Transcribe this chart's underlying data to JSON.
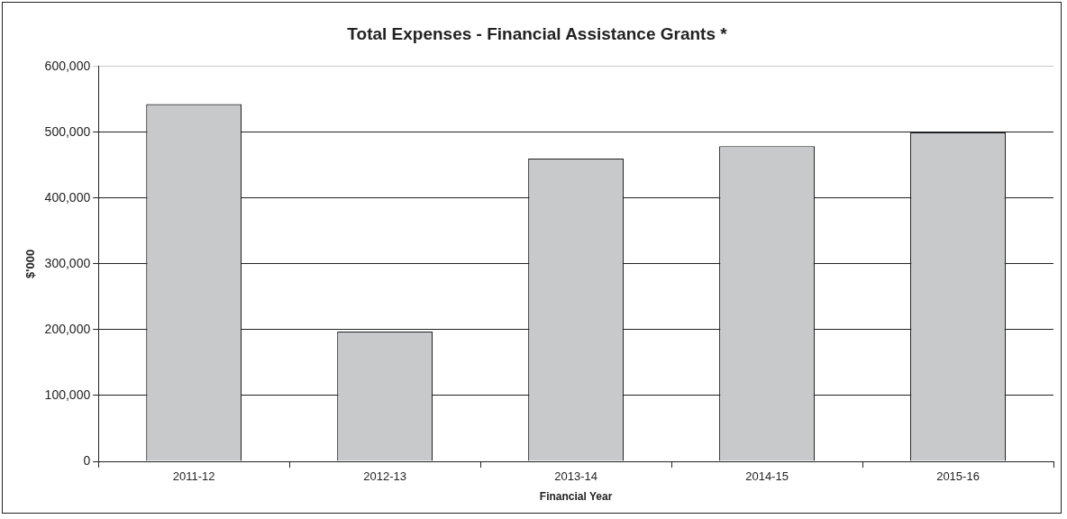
{
  "chart_data": {
    "type": "bar",
    "title": "Total Expenses - Financial Assistance Grants *",
    "xlabel": "Financial Year",
    "ylabel": "$'000",
    "categories": [
      "2011-12",
      "2012-13",
      "2013-14",
      "2014-15",
      "2015-16"
    ],
    "values": [
      543000,
      197000,
      460000,
      479000,
      500000
    ],
    "color": "#c8c9cb",
    "ylim": [
      0,
      600000
    ],
    "yticks": [
      0,
      {
        "value": 100000,
        "label": "100,000"
      },
      {
        "value": 200000,
        "label": "200,000"
      },
      {
        "value": 300000,
        "label": "300,000"
      },
      {
        "value": 400000,
        "label": "400,000"
      },
      {
        "value": 500000,
        "label": "500,000"
      },
      {
        "value": 600000,
        "label": "600,000"
      }
    ],
    "grid": "y"
  }
}
